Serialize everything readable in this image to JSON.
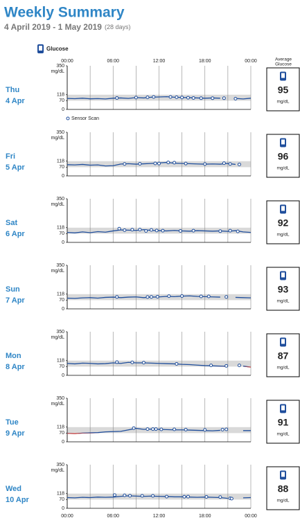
{
  "title": "Weekly Summary",
  "subtitle": "4 April 2019 - 1 May 2019",
  "days_note": "(28 days)",
  "legend": [
    "Glucose",
    "Sensor Scan"
  ],
  "average_header": [
    "Average",
    "Glucose"
  ],
  "unit": "mg/dL",
  "chart_data": [
    {
      "type": "line",
      "day": "Thu",
      "date": "4 Apr",
      "average": 95,
      "xlim": [
        0,
        24
      ],
      "xticks": [
        {
          "value": 0,
          "label": "00:00"
        },
        {
          "value": 6,
          "label": "06:00"
        },
        {
          "value": 12,
          "label": "12:00"
        },
        {
          "value": 18,
          "label": "18:00"
        },
        {
          "value": 24,
          "label": "00:00"
        }
      ],
      "xminor": [
        3,
        9,
        15,
        21
      ],
      "ylim": [
        0,
        350
      ],
      "yticks": [
        0,
        70,
        118,
        350
      ],
      "target": [
        70,
        118
      ],
      "color": "#1f4e9c",
      "low_color": "#e0473a",
      "x": [
        0,
        1,
        2,
        3,
        4,
        5,
        6,
        7,
        8,
        9,
        10,
        11,
        12,
        13,
        14,
        15,
        16,
        17,
        18,
        19,
        20,
        21,
        22,
        23,
        24
      ],
      "values": [
        88,
        86,
        90,
        85,
        87,
        84,
        90,
        92,
        88,
        95,
        92,
        98,
        100,
        102,
        98,
        96,
        94,
        92,
        90,
        92,
        90,
        null,
        88,
        84,
        90
      ],
      "scan_x": [
        6.5,
        9,
        10.5,
        11.3,
        13.5,
        14.3,
        15,
        15.8,
        16.5,
        17.5,
        19,
        20.5,
        22
      ],
      "scan_values": [
        92,
        95,
        97,
        100,
        100,
        98,
        96,
        94,
        92,
        90,
        90,
        90,
        86
      ]
    },
    {
      "type": "line",
      "day": "Fri",
      "date": "5 Apr",
      "average": 96,
      "xlim": [
        0,
        24
      ],
      "xticks": [
        {
          "value": 0,
          "label": "00:00"
        },
        {
          "value": 6,
          "label": "06:00"
        },
        {
          "value": 12,
          "label": "12:00"
        },
        {
          "value": 18,
          "label": "18:00"
        },
        {
          "value": 24,
          "label": "00:00"
        }
      ],
      "xminor": [
        3,
        9,
        15,
        21
      ],
      "ylim": [
        0,
        350
      ],
      "yticks": [
        0,
        70,
        118,
        350
      ],
      "target": [
        70,
        118
      ],
      "color": "#1f4e9c",
      "low_color": "#e0473a",
      "x": [
        0,
        1,
        2,
        3,
        4,
        5,
        6,
        7,
        8,
        9,
        10,
        11,
        12,
        13,
        14,
        15,
        16,
        17,
        18,
        19,
        20,
        21,
        22,
        23,
        24
      ],
      "values": [
        90,
        88,
        92,
        86,
        88,
        80,
        82,
        95,
        98,
        94,
        97,
        100,
        104,
        108,
        102,
        100,
        98,
        96,
        94,
        96,
        94,
        100,
        92,
        null,
        88
      ],
      "scan_x": [
        7.5,
        9.5,
        11.5,
        12,
        13.2,
        14,
        15.5,
        18,
        20.5,
        21.3,
        22.5
      ],
      "scan_values": [
        96,
        97,
        100,
        99,
        108,
        106,
        99,
        95,
        102,
        96,
        92
      ]
    },
    {
      "type": "line",
      "day": "Sat",
      "date": "6 Apr",
      "average": 92,
      "xlim": [
        0,
        24
      ],
      "xticks": [
        {
          "value": 0,
          "label": "00:00"
        },
        {
          "value": 6,
          "label": "06:00"
        },
        {
          "value": 12,
          "label": "12:00"
        },
        {
          "value": 18,
          "label": "18:00"
        },
        {
          "value": 24,
          "label": "00:00"
        }
      ],
      "xminor": [
        3,
        9,
        15,
        21
      ],
      "ylim": [
        0,
        350
      ],
      "yticks": [
        0,
        70,
        118,
        350
      ],
      "target": [
        70,
        118
      ],
      "color": "#1f4e9c",
      "low_color": "#e0473a",
      "x": [
        0,
        1,
        2,
        3,
        4,
        5,
        6,
        7,
        8,
        9,
        10,
        11,
        12,
        13,
        14,
        15,
        16,
        17,
        18,
        19,
        20,
        21,
        22,
        23,
        24
      ],
      "values": [
        80,
        76,
        84,
        78,
        86,
        82,
        92,
        100,
        98,
        96,
        102,
        96,
        94,
        92,
        96,
        92,
        90,
        94,
        92,
        90,
        92,
        88,
        94,
        84,
        80
      ],
      "scan_x": [
        6.8,
        7.5,
        8.5,
        9.5,
        10.3,
        11,
        11.7,
        12.5,
        14.8,
        16.5,
        20,
        21.3,
        22.3
      ],
      "scan_values": [
        110,
        98,
        102,
        103,
        92,
        100,
        95,
        94,
        92,
        94,
        90,
        94,
        88
      ]
    },
    {
      "type": "line",
      "day": "Sun",
      "date": "7 Apr",
      "average": 93,
      "xlim": [
        0,
        24
      ],
      "xticks": [
        {
          "value": 0,
          "label": "00:00"
        },
        {
          "value": 6,
          "label": "06:00"
        },
        {
          "value": 12,
          "label": "12:00"
        },
        {
          "value": 18,
          "label": "18:00"
        },
        {
          "value": 24,
          "label": "00:00"
        }
      ],
      "xminor": [
        3,
        9,
        15,
        21
      ],
      "ylim": [
        0,
        350
      ],
      "yticks": [
        0,
        70,
        118,
        350
      ],
      "target": [
        70,
        118
      ],
      "color": "#1f4e9c",
      "low_color": "#e0473a",
      "x": [
        0,
        1,
        2,
        3,
        4,
        5,
        6,
        7,
        8,
        9,
        10,
        11,
        12,
        13,
        14,
        15,
        16,
        17,
        18,
        19,
        20,
        21,
        22,
        23,
        24
      ],
      "values": [
        86,
        84,
        88,
        90,
        86,
        92,
        94,
        90,
        94,
        96,
        90,
        94,
        96,
        100,
        98,
        102,
        104,
        100,
        98,
        96,
        94,
        null,
        92,
        90,
        88
      ],
      "scan_x": [
        6.5,
        10.5,
        11,
        11.8,
        13.3,
        15,
        17.5,
        18.5,
        20.8
      ],
      "scan_values": [
        96,
        95,
        96,
        97,
        102,
        103,
        100,
        100,
        96
      ]
    },
    {
      "type": "line",
      "day": "Mon",
      "date": "8 Apr",
      "average": 87,
      "xlim": [
        0,
        24
      ],
      "xticks": [
        {
          "value": 0,
          "label": "00:00"
        },
        {
          "value": 6,
          "label": "06:00"
        },
        {
          "value": 12,
          "label": "12:00"
        },
        {
          "value": 18,
          "label": "18:00"
        },
        {
          "value": 24,
          "label": "00:00"
        }
      ],
      "xminor": [
        3,
        9,
        15,
        21
      ],
      "ylim": [
        0,
        350
      ],
      "yticks": [
        0,
        70,
        118,
        350
      ],
      "target": [
        70,
        118
      ],
      "color": "#1f4e9c",
      "low_color": "#e0473a",
      "x": [
        0,
        1,
        2,
        3,
        4,
        5,
        6,
        7,
        8,
        9,
        10,
        11,
        12,
        13,
        14,
        15,
        16,
        17,
        18,
        19,
        20,
        21,
        22,
        23,
        24
      ],
      "values": [
        96,
        92,
        98,
        96,
        92,
        94,
        100,
        96,
        104,
        100,
        100,
        98,
        96,
        94,
        92,
        88,
        86,
        82,
        78,
        76,
        74,
        72,
        null,
        74,
        66
      ],
      "scan_x": [
        6.5,
        8.5,
        10,
        14.3,
        18.8,
        20.8,
        22.5
      ],
      "scan_values": [
        106,
        104,
        102,
        92,
        80,
        76,
        80
      ]
    },
    {
      "type": "line",
      "day": "Tue",
      "date": "9 Apr",
      "average": 91,
      "xlim": [
        0,
        24
      ],
      "xticks": [
        {
          "value": 0,
          "label": "00:00"
        },
        {
          "value": 6,
          "label": "06:00"
        },
        {
          "value": 12,
          "label": "12:00"
        },
        {
          "value": 18,
          "label": "18:00"
        },
        {
          "value": 24,
          "label": "00:00"
        }
      ],
      "xminor": [
        3,
        9,
        15,
        21
      ],
      "ylim": [
        0,
        350
      ],
      "yticks": [
        0,
        70,
        118,
        350
      ],
      "target": [
        70,
        118
      ],
      "color": "#1f4e9c",
      "low_color": "#e0473a",
      "x": [
        0,
        1,
        2,
        3,
        4,
        5,
        6,
        7,
        8,
        9,
        10,
        11,
        12,
        13,
        14,
        15,
        16,
        17,
        18,
        19,
        20,
        21,
        22,
        23,
        24
      ],
      "values": [
        68,
        66,
        70,
        72,
        74,
        80,
        82,
        84,
        96,
        108,
        100,
        102,
        100,
        98,
        96,
        96,
        94,
        92,
        90,
        88,
        92,
        null,
        null,
        90,
        90
      ],
      "scan_x": [
        8.7,
        10.5,
        11.2,
        11.6,
        12.3,
        14,
        15.5,
        18,
        20.3,
        20.8
      ],
      "scan_values": [
        110,
        102,
        102,
        102,
        100,
        100,
        98,
        96,
        98,
        100
      ]
    },
    {
      "type": "line",
      "day": "Wed",
      "date": "10 Apr",
      "average": 88,
      "xlim": [
        0,
        24
      ],
      "xticks": [
        {
          "value": 0,
          "label": "00:00"
        },
        {
          "value": 6,
          "label": "06:00"
        },
        {
          "value": 12,
          "label": "12:00"
        },
        {
          "value": 18,
          "label": "18:00"
        },
        {
          "value": 24,
          "label": "00:00"
        }
      ],
      "xminor": [
        3,
        9,
        15,
        21
      ],
      "ylim": [
        0,
        350
      ],
      "yticks": [
        0,
        70,
        118,
        350
      ],
      "target": [
        70,
        118
      ],
      "color": "#1f4e9c",
      "low_color": "#e0473a",
      "x": [
        0,
        1,
        2,
        3,
        4,
        5,
        6,
        7,
        8,
        9,
        10,
        11,
        12,
        13,
        14,
        15,
        16,
        17,
        18,
        19,
        20,
        21,
        22,
        23,
        24
      ],
      "values": [
        86,
        84,
        88,
        86,
        90,
        88,
        90,
        96,
        100,
        98,
        96,
        98,
        96,
        94,
        92,
        92,
        90,
        88,
        90,
        88,
        86,
        80,
        null,
        84,
        86
      ],
      "scan_x": [
        6.2,
        7.5,
        8.2,
        9.8,
        11.2,
        13,
        15.3,
        15.8,
        18.2,
        20,
        21.3,
        21.5
      ],
      "scan_values": [
        106,
        104,
        101,
        100,
        100,
        94,
        93,
        94,
        92,
        90,
        80,
        78
      ]
    }
  ]
}
